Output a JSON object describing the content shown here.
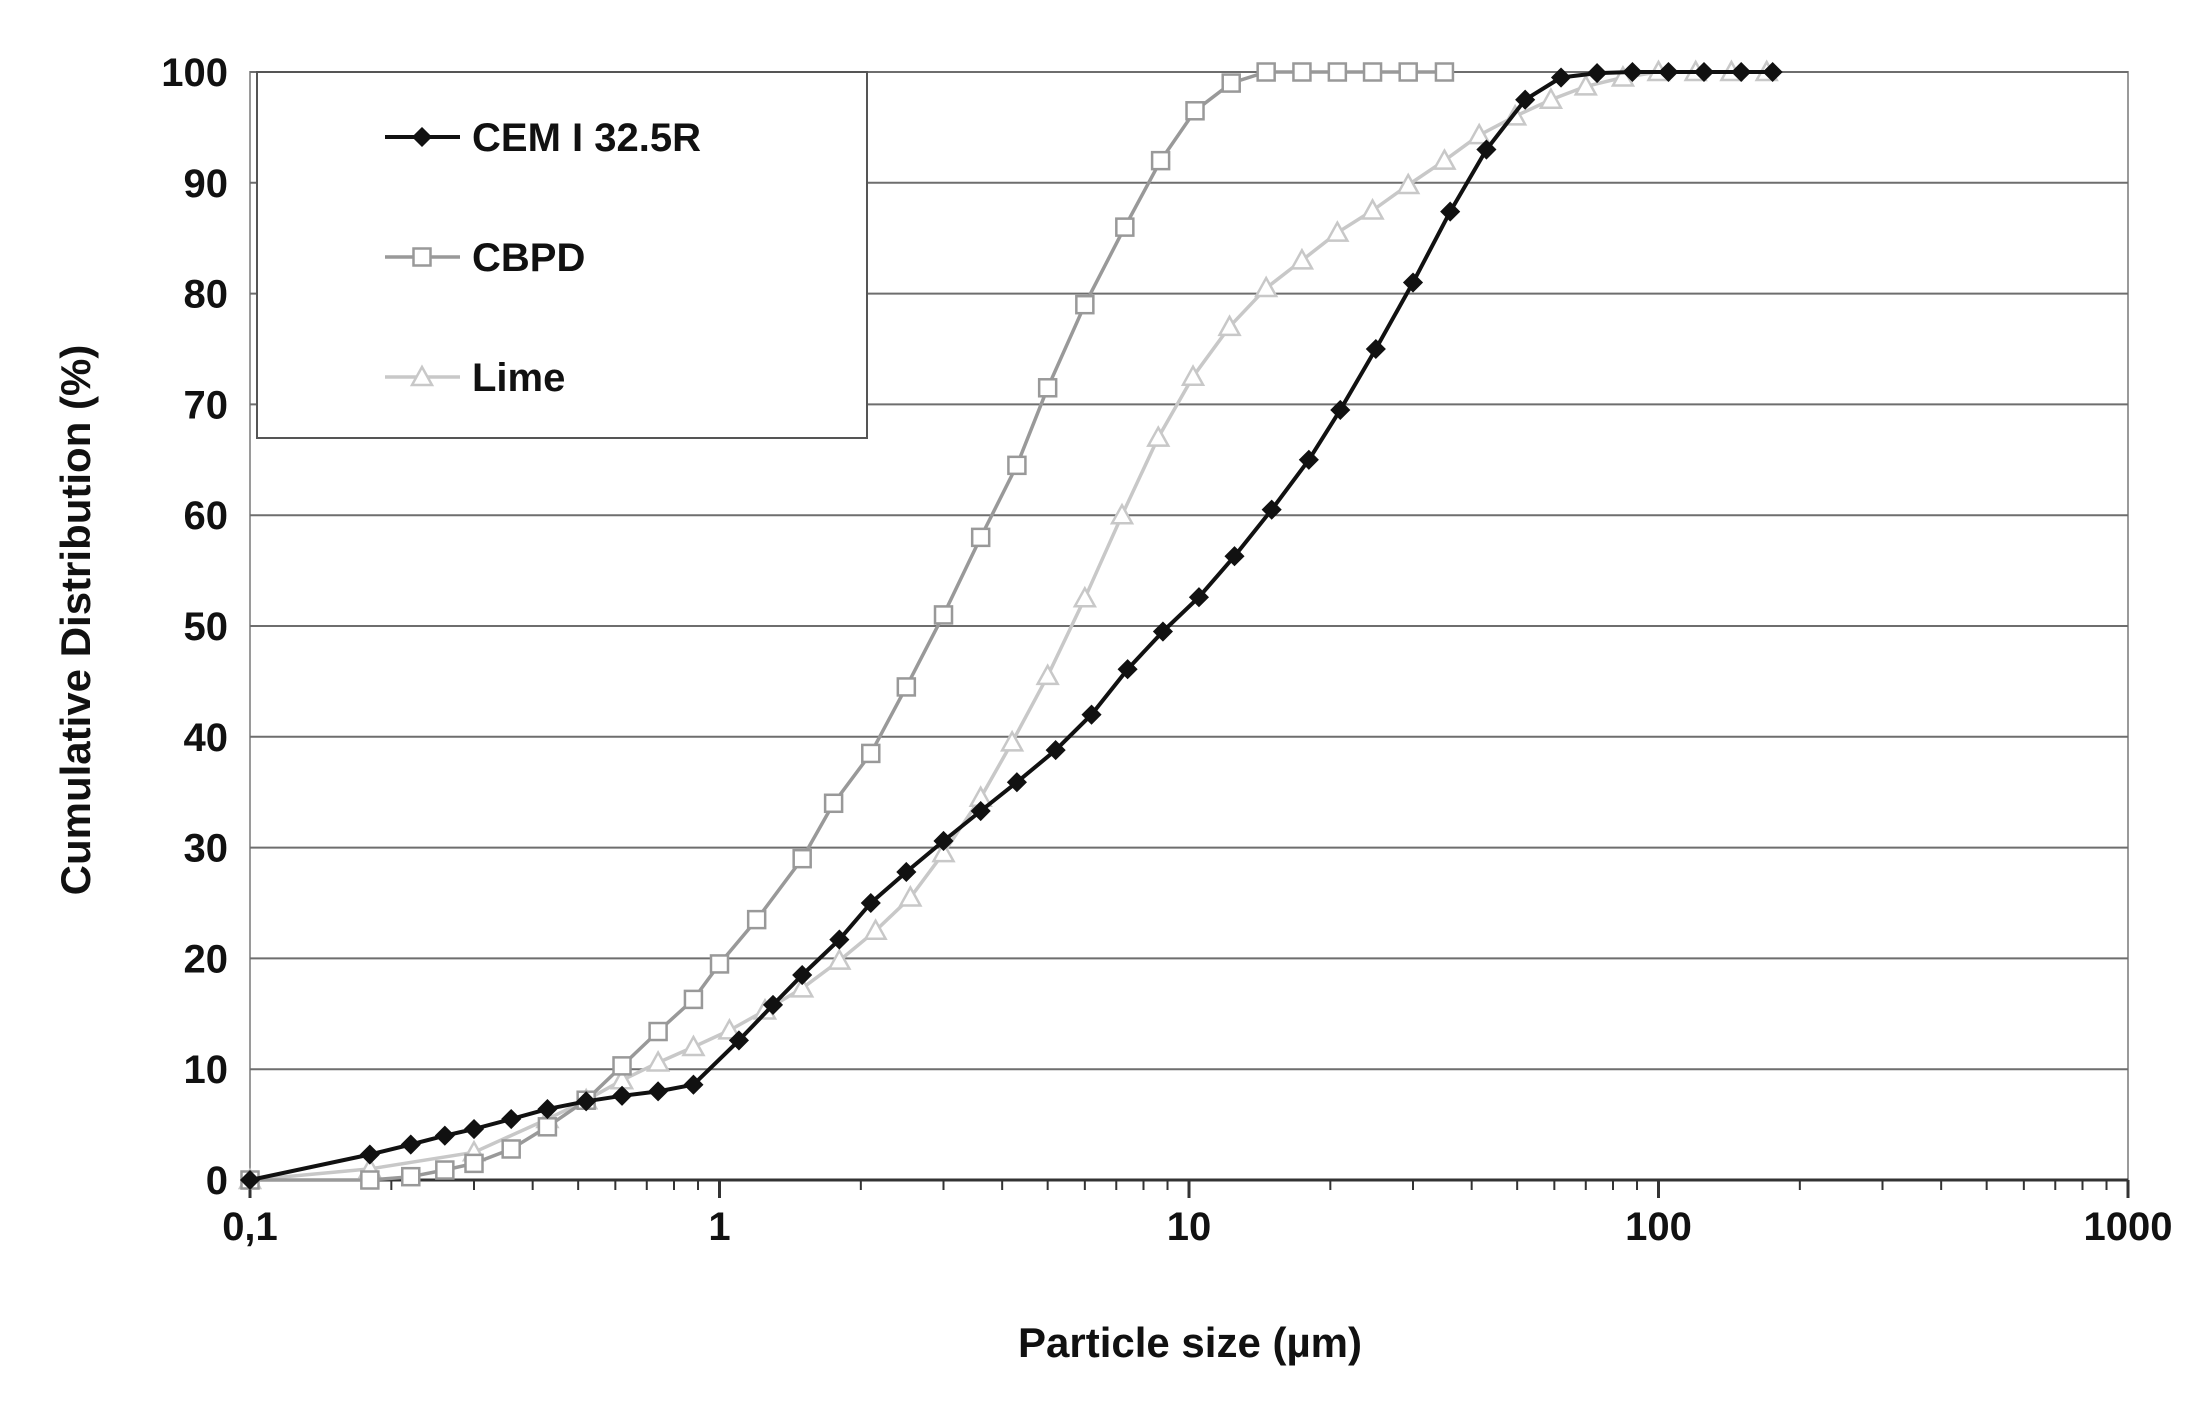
{
  "chart_data": {
    "type": "line",
    "title": "",
    "xlabel": "Particle size (µm)",
    "ylabel": "Cumulative Distribution (%)",
    "xscale": "log",
    "xlim": [
      0.1,
      1000
    ],
    "ylim": [
      0,
      100
    ],
    "grid": "horizontal",
    "legend_position": "top-left",
    "x_ticks": [
      {
        "value": 0.1,
        "label": "0,1"
      },
      {
        "value": 1,
        "label": "1"
      },
      {
        "value": 10,
        "label": "10"
      },
      {
        "value": 100,
        "label": "100"
      },
      {
        "value": 1000,
        "label": "1000"
      }
    ],
    "y_ticks": [
      {
        "value": 0,
        "label": "0"
      },
      {
        "value": 10,
        "label": "10"
      },
      {
        "value": 20,
        "label": "20"
      },
      {
        "value": 30,
        "label": "30"
      },
      {
        "value": 40,
        "label": "40"
      },
      {
        "value": 50,
        "label": "50"
      },
      {
        "value": 60,
        "label": "60"
      },
      {
        "value": 70,
        "label": "70"
      },
      {
        "value": 80,
        "label": "80"
      },
      {
        "value": 90,
        "label": "90"
      },
      {
        "value": 100,
        "label": "100"
      }
    ],
    "series": [
      {
        "name": "CEM I 32.5R",
        "color": "#111111",
        "marker": "diamond",
        "x": [
          0.1,
          0.18,
          0.22,
          0.26,
          0.3,
          0.36,
          0.43,
          0.52,
          0.62,
          0.74,
          0.88,
          1.1,
          1.3,
          1.5,
          1.8,
          2.1,
          2.5,
          3.0,
          3.6,
          4.3,
          5.2,
          6.2,
          7.4,
          8.8,
          10.5,
          12.5,
          15,
          18,
          21,
          25,
          30,
          36,
          43,
          52,
          62,
          74,
          88,
          105,
          125,
          150,
          175
        ],
        "values": [
          0,
          2.3,
          3.2,
          4.0,
          4.6,
          5.5,
          6.4,
          7.1,
          7.6,
          8.0,
          8.6,
          12.6,
          15.8,
          18.5,
          21.7,
          25.0,
          27.8,
          30.6,
          33.3,
          35.9,
          38.8,
          42.0,
          46.1,
          49.5,
          52.6,
          56.3,
          60.5,
          65.0,
          69.5,
          75.0,
          81.0,
          87.4,
          93.0,
          97.5,
          99.5,
          99.9,
          100,
          100,
          100,
          100,
          100
        ]
      },
      {
        "name": "CBPD",
        "color": "#999999",
        "marker": "square",
        "x": [
          0.1,
          0.18,
          0.22,
          0.26,
          0.3,
          0.36,
          0.43,
          0.52,
          0.62,
          0.74,
          0.88,
          1.0,
          1.2,
          1.5,
          1.75,
          2.1,
          2.5,
          3.0,
          3.6,
          4.3,
          5.0,
          6.0,
          7.3,
          8.7,
          10.3,
          12.3,
          14.6,
          17.4,
          20.7,
          24.6,
          29.3,
          35
        ],
        "values": [
          0,
          0,
          0.3,
          0.9,
          1.5,
          2.8,
          4.8,
          7.2,
          10.3,
          13.4,
          16.3,
          19.5,
          23.5,
          29.0,
          34.0,
          38.5,
          44.5,
          51.0,
          58.0,
          64.5,
          71.5,
          79.0,
          86.0,
          92.0,
          96.5,
          99.0,
          100,
          100,
          100,
          100,
          100,
          100
        ]
      },
      {
        "name": "Lime",
        "color": "#c8c8c8",
        "marker": "triangle",
        "x": [
          0.1,
          0.18,
          0.3,
          0.43,
          0.52,
          0.62,
          0.74,
          0.88,
          1.05,
          1.25,
          1.5,
          1.8,
          2.15,
          2.55,
          3.0,
          3.6,
          4.2,
          5.0,
          6.0,
          7.2,
          8.6,
          10.2,
          12.2,
          14.6,
          17.4,
          20.7,
          24.6,
          29.3,
          35,
          41.5,
          49.5,
          59,
          70,
          84,
          100,
          120,
          143,
          170
        ],
        "values": [
          0,
          1.0,
          2.5,
          5.5,
          7.2,
          9.0,
          10.6,
          12.0,
          13.5,
          15.3,
          17.3,
          19.8,
          22.5,
          25.5,
          29.5,
          34.5,
          39.5,
          45.5,
          52.5,
          60.0,
          67.0,
          72.5,
          77.0,
          80.5,
          83.0,
          85.5,
          87.5,
          89.8,
          92.0,
          94.3,
          96.0,
          97.5,
          98.7,
          99.5,
          100,
          100,
          100,
          100
        ]
      }
    ]
  }
}
